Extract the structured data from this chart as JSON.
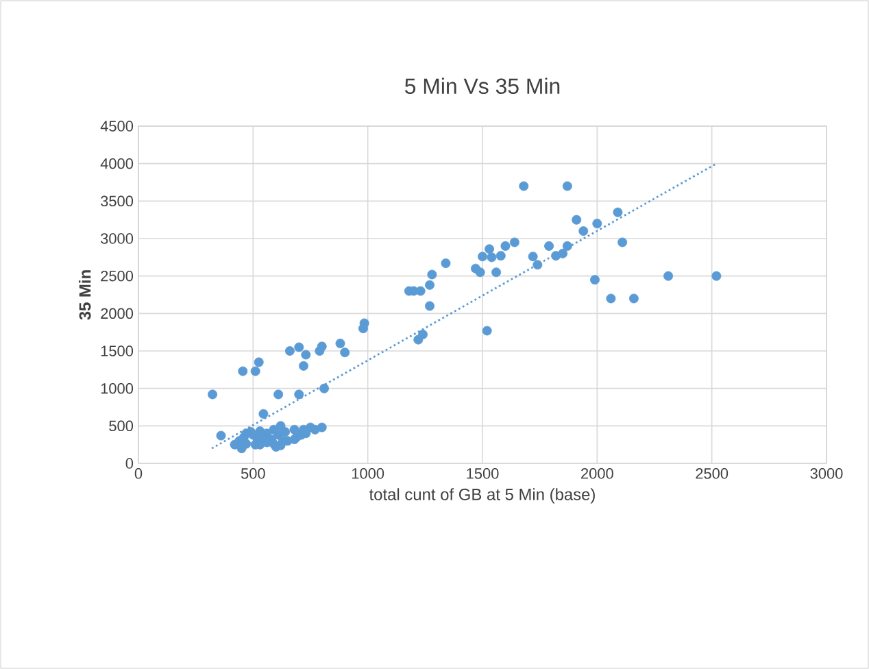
{
  "chart_data": {
    "type": "scatter",
    "title": "5 Min Vs 35 Min",
    "xlabel": "total  cunt of  GB at  5 Min (base)",
    "ylabel": "35 Min",
    "xlim": [
      0,
      3000
    ],
    "xticks": [
      0,
      500,
      1000,
      1500,
      2000,
      2500,
      3000
    ],
    "ylim": [
      0,
      4500
    ],
    "yticks": [
      0,
      500,
      1000,
      1500,
      2000,
      2500,
      3000,
      3500,
      4000,
      4500
    ],
    "grid": true,
    "marker": "circle",
    "series": [
      {
        "color": "#5b9bd5",
        "x": [
          323,
          360,
          420,
          440,
          450,
          460,
          470,
          490,
          500,
          510,
          520,
          530,
          550,
          560,
          580,
          590,
          600,
          610,
          620,
          630,
          640,
          680,
          690,
          710,
          720,
          730,
          750,
          770,
          470,
          530,
          560,
          590,
          620,
          650,
          680,
          455,
          510,
          525,
          545,
          610,
          660,
          700,
          700,
          720,
          730,
          790,
          800,
          800,
          810,
          880,
          900,
          980,
          985,
          1180,
          1200,
          1230,
          1220,
          1240,
          1270,
          1270,
          1280,
          1340,
          1470,
          1490,
          1500,
          1530,
          1540,
          1560,
          1580,
          1600,
          1640,
          1680,
          1870,
          1520,
          1720,
          1740,
          1790,
          1820,
          1850,
          1870,
          1910,
          1940,
          1990,
          2000,
          2060,
          2090,
          2110,
          2160,
          2310,
          2520
        ],
        "values": [
          920,
          370,
          250,
          300,
          200,
          350,
          400,
          420,
          380,
          250,
          320,
          430,
          350,
          400,
          320,
          450,
          220,
          380,
          500,
          300,
          420,
          450,
          350,
          380,
          450,
          400,
          480,
          450,
          260,
          250,
          280,
          260,
          240,
          300,
          320,
          1230,
          1230,
          1350,
          660,
          920,
          1500,
          1550,
          920,
          1300,
          1450,
          1500,
          1560,
          480,
          1000,
          1600,
          1480,
          1800,
          1870,
          2300,
          2300,
          2300,
          1650,
          1720,
          2100,
          2380,
          2520,
          2670,
          2600,
          2550,
          2760,
          2860,
          2750,
          2550,
          2770,
          2900,
          2950,
          3700,
          3700,
          1770,
          2760,
          2650,
          2900,
          2770,
          2800,
          2900,
          3250,
          3100,
          2450,
          3200,
          2200,
          3350,
          2950,
          2200,
          2500,
          2500
        ]
      },
      {
        "type": "line",
        "color": "#5b9bd5",
        "marker": "none",
        "line_style": "dotted",
        "x": [
          320,
          2520
        ],
        "values": [
          200,
          4000
        ]
      }
    ]
  }
}
